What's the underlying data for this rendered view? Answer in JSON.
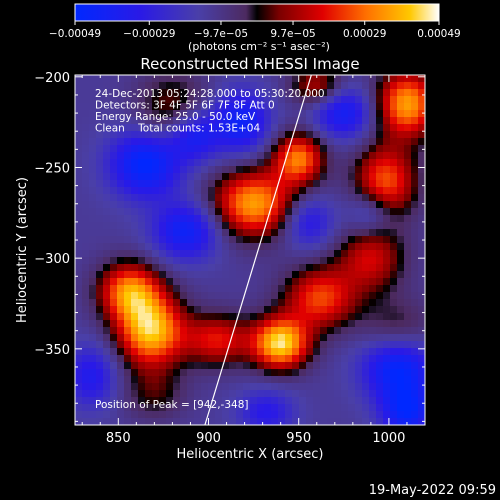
{
  "chart_data": {
    "type": "heatmap",
    "title": "Reconstructed RHESSI Image",
    "xlabel": "Heliocentric X (arcsec)",
    "ylabel": "Heliocentric Y (arcsec)",
    "xlim": [
      826,
      1020
    ],
    "ylim": [
      -392,
      -199
    ],
    "x_ticks": [
      850,
      900,
      950,
      1000
    ],
    "y_ticks": [
      -200,
      -250,
      -300,
      -350
    ],
    "x_tick_labels": [
      "850",
      "900",
      "950",
      "1000"
    ],
    "y_tick_labels": [
      "−200",
      "−250",
      "−300",
      "−350"
    ],
    "colorbar": {
      "min": -0.00049,
      "max": 0.00049,
      "tick_values": [
        -0.00049,
        -0.00029,
        -9.7e-05,
        9.7e-05,
        0.00029,
        0.00049
      ],
      "tick_labels": [
        "−0.00049",
        "−0.00029",
        "−9.7e−05",
        "9.7e−05",
        "0.00029",
        "0.00049"
      ],
      "unit_label": "(photons cm⁻² s⁻¹ asec⁻²)"
    },
    "annotations": [
      "24-Dec-2013 05:24:28.000 to 05:30:20.000",
      "Detectors: 3F 4F 5F 6F 7F 8F Att 0",
      "Energy Range: 25.0 - 50.0 keV",
      "Clean    Total counts: 1.53E+04"
    ],
    "peak_label": "Position of Peak = [942,-348]",
    "peak": [
      942,
      -348
    ],
    "limb_line": [
      [
        957,
        -199
      ],
      [
        898,
        -392
      ]
    ],
    "hot_spots": [
      {
        "x": 940,
        "y": -347,
        "amp": 1.0,
        "sx": 11,
        "sy": 10
      },
      {
        "x": 868,
        "y": -340,
        "amp": 0.95,
        "sx": 13,
        "sy": 14
      },
      {
        "x": 856,
        "y": -318,
        "amp": 0.75,
        "sx": 12,
        "sy": 11
      },
      {
        "x": 925,
        "y": -270,
        "amp": 0.85,
        "sx": 16,
        "sy": 13
      },
      {
        "x": 950,
        "y": -245,
        "amp": 0.75,
        "sx": 10,
        "sy": 10
      },
      {
        "x": 1010,
        "y": -215,
        "amp": 0.85,
        "sx": 12,
        "sy": 13
      },
      {
        "x": 998,
        "y": -258,
        "amp": 0.7,
        "sx": 12,
        "sy": 14
      },
      {
        "x": 962,
        "y": -322,
        "amp": 0.65,
        "sx": 14,
        "sy": 12
      },
      {
        "x": 905,
        "y": -345,
        "amp": 0.55,
        "sx": 13,
        "sy": 10
      },
      {
        "x": 880,
        "y": -218,
        "amp": 0.35,
        "sx": 14,
        "sy": 14
      },
      {
        "x": 990,
        "y": -300,
        "amp": 0.5,
        "sx": 13,
        "sy": 13
      },
      {
        "x": 1005,
        "y": -340,
        "amp": 0.3,
        "sx": 14,
        "sy": 12
      },
      {
        "x": 960,
        "y": -205,
        "amp": 0.45,
        "sx": 10,
        "sy": 8
      },
      {
        "x": 870,
        "y": -375,
        "amp": 0.25,
        "sx": 12,
        "sy": 10
      }
    ],
    "cold_spots": [
      {
        "x": 865,
        "y": -248,
        "amp": 0.65,
        "sx": 14,
        "sy": 13
      },
      {
        "x": 892,
        "y": -232,
        "amp": 0.5,
        "sx": 10,
        "sy": 10
      },
      {
        "x": 918,
        "y": -225,
        "amp": 0.55,
        "sx": 11,
        "sy": 12
      },
      {
        "x": 888,
        "y": -285,
        "amp": 0.55,
        "sx": 13,
        "sy": 11
      },
      {
        "x": 975,
        "y": -220,
        "amp": 0.5,
        "sx": 12,
        "sy": 10
      },
      {
        "x": 1005,
        "y": -360,
        "amp": 0.65,
        "sx": 14,
        "sy": 13
      },
      {
        "x": 1010,
        "y": -385,
        "amp": 0.55,
        "sx": 10,
        "sy": 10
      },
      {
        "x": 955,
        "y": -280,
        "amp": 0.4,
        "sx": 10,
        "sy": 10
      },
      {
        "x": 835,
        "y": -365,
        "amp": 0.4,
        "sx": 10,
        "sy": 12
      },
      {
        "x": 990,
        "y": -275,
        "amp": 0.35,
        "sx": 9,
        "sy": 9
      },
      {
        "x": 932,
        "y": -385,
        "amp": 0.35,
        "sx": 11,
        "sy": 9
      }
    ]
  },
  "footer": {
    "date_label": "19-May-2022 09:59"
  }
}
